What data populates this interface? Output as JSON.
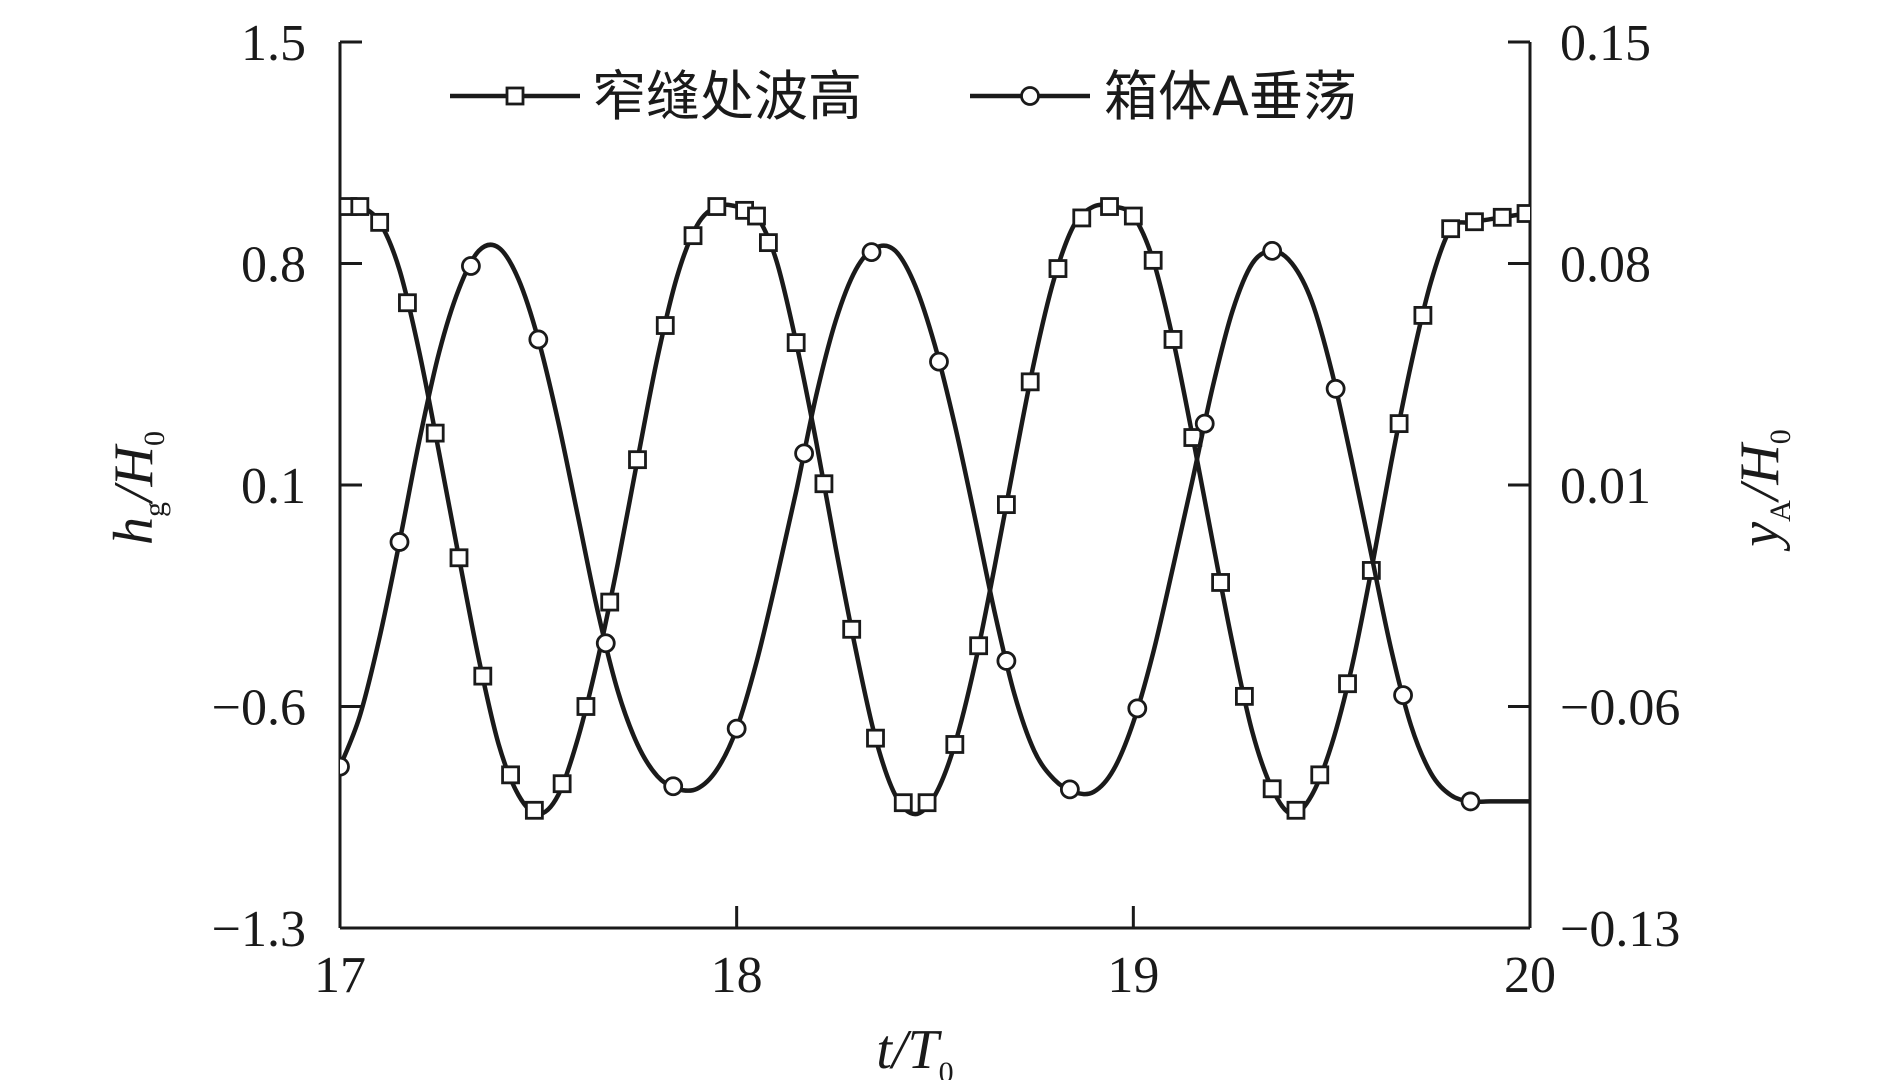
{
  "chart_data": {
    "type": "line",
    "xlabel": {
      "main": "t/T",
      "sub": "0"
    },
    "ylabel_left": {
      "main": "h",
      "sub1": "g",
      "tail": "/H",
      "sub2": "0"
    },
    "ylabel_right": {
      "main": "y",
      "sub1": "A",
      "tail": "/H",
      "sub2": "0"
    },
    "xlim": [
      17,
      20
    ],
    "ylim_left": [
      -1.3,
      1.5
    ],
    "ylim_right": [
      -0.13,
      0.15
    ],
    "x_ticks": [
      "17",
      "18",
      "19",
      "20"
    ],
    "y_ticks_left": [
      "1.5",
      "0.8",
      "0.1",
      "−0.6",
      "−1.3"
    ],
    "y_ticks_right": [
      "0.15",
      "0.08",
      "0.01",
      "−0.06",
      "−0.13"
    ],
    "grid": false,
    "legend_position": "top",
    "series": [
      {
        "name": "窄缝处波高",
        "axis": "left",
        "marker": "square",
        "color": "#1a1a1a",
        "x": [
          17.0,
          17.05,
          17.1,
          17.15,
          17.2,
          17.25,
          17.3,
          17.35,
          17.4,
          17.45,
          17.5,
          17.55,
          17.6,
          17.65,
          17.7,
          17.75,
          17.8,
          17.85,
          17.9,
          17.95,
          18.0,
          18.05,
          18.1,
          18.15,
          18.2,
          18.25,
          18.3,
          18.35,
          18.4,
          18.45,
          18.5,
          18.55,
          18.6,
          18.65,
          18.7,
          18.75,
          18.8,
          18.85,
          18.9,
          18.95,
          19.0,
          19.05,
          19.1,
          19.15,
          19.2,
          19.25,
          19.3,
          19.35,
          19.4,
          19.45,
          19.5,
          19.55,
          19.6,
          19.65,
          19.7,
          19.75,
          19.8,
          19.85,
          19.9,
          19.95,
          20.0
        ],
        "values": [
          0.98,
          0.98,
          0.93,
          0.78,
          0.52,
          0.2,
          -0.13,
          -0.45,
          -0.72,
          -0.88,
          -0.94,
          -0.88,
          -0.7,
          -0.45,
          -0.15,
          0.18,
          0.5,
          0.76,
          0.92,
          0.98,
          0.98,
          0.95,
          0.81,
          0.55,
          0.24,
          -0.1,
          -0.42,
          -0.7,
          -0.88,
          -0.94,
          -0.88,
          -0.72,
          -0.47,
          -0.16,
          0.17,
          0.49,
          0.75,
          0.92,
          0.98,
          0.98,
          0.95,
          0.81,
          0.56,
          0.25,
          -0.08,
          -0.4,
          -0.68,
          -0.86,
          -0.94,
          -0.88,
          -0.72,
          -0.48,
          -0.17,
          0.17,
          0.48,
          0.74,
          0.91,
          0.93,
          0.94,
          0.95,
          0.96
        ]
      },
      {
        "name": "箱体A垂荡",
        "axis": "right",
        "marker": "circle",
        "color": "#1a1a1a",
        "x": [
          17.0,
          17.05,
          17.1,
          17.15,
          17.2,
          17.25,
          17.3,
          17.35,
          17.4,
          17.45,
          17.5,
          17.55,
          17.6,
          17.65,
          17.7,
          17.75,
          17.8,
          17.85,
          17.9,
          17.95,
          18.0,
          18.05,
          18.1,
          18.15,
          18.2,
          18.25,
          18.3,
          18.35,
          18.4,
          18.45,
          18.5,
          18.55,
          18.6,
          18.65,
          18.7,
          18.75,
          18.8,
          18.85,
          18.9,
          18.95,
          19.0,
          19.05,
          19.1,
          19.15,
          19.2,
          19.25,
          19.3,
          19.35,
          19.4,
          19.45,
          19.5,
          19.55,
          19.6,
          19.65,
          19.7,
          19.75,
          19.8,
          19.85,
          19.9,
          19.95,
          20.0
        ],
        "values": [
          -0.079,
          -0.063,
          -0.038,
          -0.008,
          0.024,
          0.052,
          0.072,
          0.084,
          0.085,
          0.075,
          0.056,
          0.03,
          0.0,
          -0.03,
          -0.055,
          -0.072,
          -0.082,
          -0.086,
          -0.086,
          -0.08,
          -0.067,
          -0.046,
          -0.02,
          0.008,
          0.038,
          0.062,
          0.078,
          0.085,
          0.084,
          0.073,
          0.054,
          0.029,
          0.0,
          -0.03,
          -0.056,
          -0.074,
          -0.083,
          -0.087,
          -0.087,
          -0.08,
          -0.065,
          -0.043,
          -0.016,
          0.012,
          0.041,
          0.065,
          0.08,
          0.084,
          0.08,
          0.068,
          0.046,
          0.018,
          -0.012,
          -0.042,
          -0.066,
          -0.081,
          -0.088,
          -0.09,
          -0.09,
          -0.09,
          -0.09
        ]
      }
    ],
    "marker_x_left": [
      17.02,
      17.05,
      17.1,
      17.17,
      17.24,
      17.3,
      17.36,
      17.43,
      17.49,
      17.56,
      17.62,
      17.68,
      17.75,
      17.82,
      17.89,
      17.95,
      18.02,
      18.05,
      18.08,
      18.15,
      18.22,
      18.29,
      18.35,
      18.42,
      18.48,
      18.55,
      18.61,
      18.68,
      18.74,
      18.81,
      18.87,
      18.94,
      19.0,
      19.05,
      19.1,
      19.15,
      19.22,
      19.28,
      19.35,
      19.41,
      19.47,
      19.54,
      19.6,
      19.67,
      19.73,
      19.8,
      19.86,
      19.93,
      19.99
    ],
    "marker_x_right": [
      17.0,
      17.15,
      17.33,
      17.5,
      17.67,
      17.84,
      18.0,
      18.17,
      18.34,
      18.51,
      18.68,
      18.84,
      19.01,
      19.18,
      19.35,
      19.51,
      19.68,
      19.85
    ]
  }
}
